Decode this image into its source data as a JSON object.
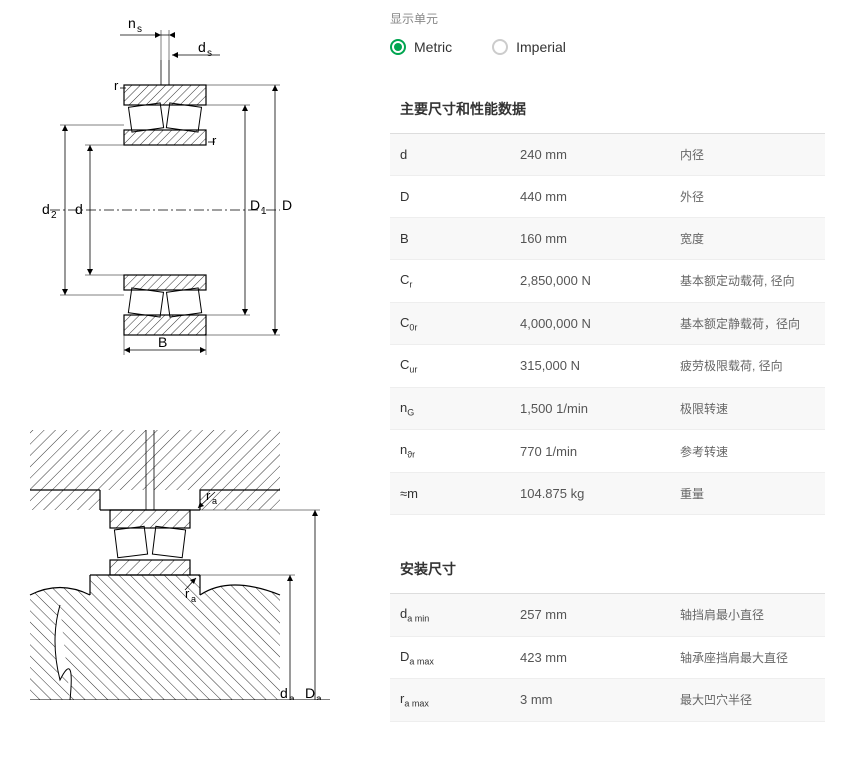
{
  "unit_label": "显示单元",
  "radios": {
    "metric": "Metric",
    "imperial": "Imperial"
  },
  "section1": {
    "title": "主要尺寸和性能数据",
    "rows": [
      {
        "sym": "d",
        "val": "240 mm",
        "desc": "内径"
      },
      {
        "sym": "D",
        "val": "440 mm",
        "desc": "外径"
      },
      {
        "sym": "B",
        "val": "160 mm",
        "desc": "宽度"
      },
      {
        "sym": "C",
        "sub": "r",
        "val": "2,850,000 N",
        "desc": "基本额定动载荷, 径向"
      },
      {
        "sym": "C",
        "sub": "0r",
        "val": "4,000,000 N",
        "desc": "基本额定静载荷，径向"
      },
      {
        "sym": "C",
        "sub": "ur",
        "val": "315,000 N",
        "desc": "疲劳极限载荷, 径向"
      },
      {
        "sym": "n",
        "sub": "G",
        "val": "1,500 1/min",
        "desc": "极限转速"
      },
      {
        "sym": "n",
        "sub": "ϑr",
        "val": "770 1/min",
        "desc": "参考转速"
      },
      {
        "sym": "≈m",
        "val": "104.875 kg",
        "desc": "重量"
      }
    ]
  },
  "section2": {
    "title": "安装尺寸",
    "rows": [
      {
        "sym": "d",
        "sub": "a min",
        "val": "257 mm",
        "desc": "轴挡肩最小直径"
      },
      {
        "sym": "D",
        "sub": "a max",
        "val": "423 mm",
        "desc": "轴承座挡肩最大直径"
      },
      {
        "sym": "r",
        "sub": "a max",
        "val": "3 mm",
        "desc": "最大凹穴半径"
      }
    ]
  },
  "diagram_labels": {
    "ns": "n",
    "ns_sub": "s",
    "ds": "d",
    "ds_sub": "s",
    "r": "r",
    "d2": "d",
    "d2_sub": "2",
    "d": "d",
    "D1": "D",
    "D1_sub": "1",
    "D": "D",
    "B": "B",
    "ra": "r",
    "ra_sub": "a",
    "da": "d",
    "da_sub": "a",
    "Da": "D",
    "Da_sub": "a"
  },
  "colors": {
    "accent": "#00a550",
    "line": "#000000",
    "hatch": "#000000"
  }
}
